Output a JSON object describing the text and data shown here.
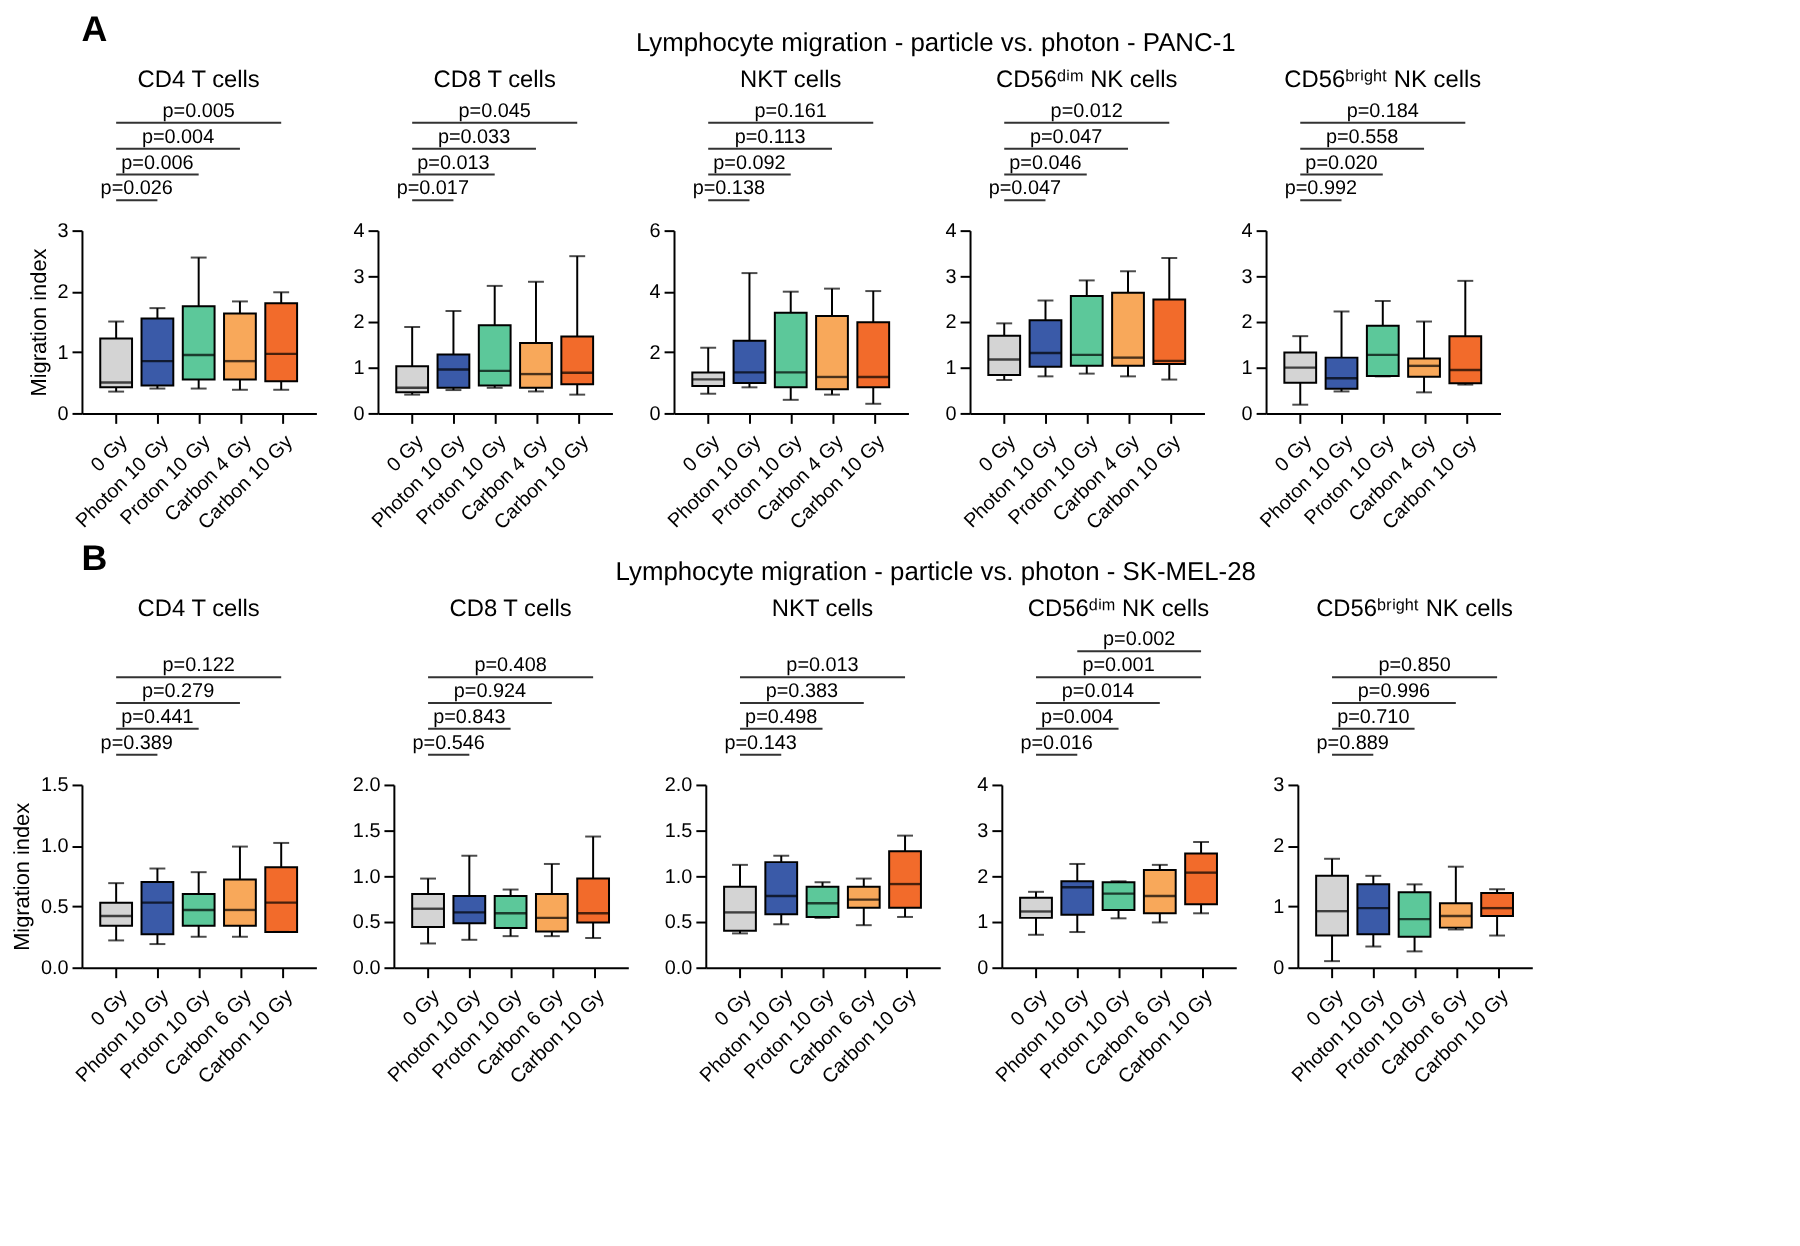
{
  "chart_data": [
    {
      "type": "other",
      "title": "Lymphocyte migration - particle vs. photon - PANC-1",
      "annotations": [
        "A"
      ]
    },
    {
      "type": "box",
      "title": "CD4 T cells",
      "ylabel": "Migration index",
      "categories": [
        "0 Gy",
        "Photon 10 Gy",
        "Proton 10 Gy",
        "Carbon 4 Gy",
        "Carbon 10 Gy"
      ],
      "colors": [
        "#d4d4d4",
        "#3a5aa8",
        "#5cc89a",
        "#f8a85a",
        "#f26b2b"
      ],
      "ylim": [
        0,
        3
      ],
      "yticks": [
        0,
        1,
        2,
        3
      ],
      "boxes": [
        {
          "low": 0.35,
          "q1": 0.42,
          "median": 0.5,
          "q3": 1.22,
          "high": 1.5
        },
        {
          "low": 0.4,
          "q1": 0.45,
          "median": 0.85,
          "q3": 1.55,
          "high": 1.72
        },
        {
          "low": 0.4,
          "q1": 0.55,
          "median": 0.95,
          "q3": 1.75,
          "high": 2.55
        },
        {
          "low": 0.38,
          "q1": 0.55,
          "median": 0.85,
          "q3": 1.63,
          "high": 1.83
        },
        {
          "low": 0.38,
          "q1": 0.52,
          "median": 0.97,
          "q3": 1.8,
          "high": 1.98
        }
      ],
      "annotations": [
        "p=0.026",
        "p=0.006",
        "p=0.004",
        "p=0.005"
      ]
    },
    {
      "type": "box",
      "title": "CD8 T cells",
      "categories": [
        "0 Gy",
        "Photon 10 Gy",
        "Proton 10 Gy",
        "Carbon 4 Gy",
        "Carbon 10 Gy"
      ],
      "colors": [
        "#d4d4d4",
        "#3a5aa8",
        "#5cc89a",
        "#f8a85a",
        "#f26b2b"
      ],
      "ylim": [
        0,
        4
      ],
      "yticks": [
        0,
        1,
        2,
        3,
        4
      ],
      "boxes": [
        {
          "low": 0.4,
          "q1": 0.45,
          "median": 0.55,
          "q3": 1.02,
          "high": 1.88
        },
        {
          "low": 0.5,
          "q1": 0.55,
          "median": 0.95,
          "q3": 1.28,
          "high": 2.23
        },
        {
          "low": 0.55,
          "q1": 0.6,
          "median": 0.92,
          "q3": 1.92,
          "high": 2.78
        },
        {
          "low": 0.47,
          "q1": 0.55,
          "median": 0.85,
          "q3": 1.53,
          "high": 2.87
        },
        {
          "low": 0.4,
          "q1": 0.63,
          "median": 0.88,
          "q3": 1.67,
          "high": 3.43
        }
      ],
      "annotations": [
        "p=0.017",
        "p=0.013",
        "p=0.033",
        "p=0.045"
      ]
    },
    {
      "type": "box",
      "title": "NKT cells",
      "categories": [
        "0 Gy",
        "Photon 10 Gy",
        "Proton 10 Gy",
        "Carbon 4 Gy",
        "Carbon 10 Gy"
      ],
      "colors": [
        "#d4d4d4",
        "#3a5aa8",
        "#5cc89a",
        "#f8a85a",
        "#f26b2b"
      ],
      "ylim": [
        0,
        6
      ],
      "yticks": [
        0,
        2,
        4,
        6
      ],
      "boxes": [
        {
          "low": 0.63,
          "q1": 0.88,
          "median": 1.1,
          "q3": 1.33,
          "high": 2.14
        },
        {
          "low": 0.84,
          "q1": 0.98,
          "median": 1.33,
          "q3": 2.37,
          "high": 4.59
        },
        {
          "low": 0.43,
          "q1": 0.84,
          "median": 1.33,
          "q3": 3.29,
          "high": 3.98
        },
        {
          "low": 0.6,
          "q1": 0.78,
          "median": 1.18,
          "q3": 3.18,
          "high": 4.08
        },
        {
          "low": 0.3,
          "q1": 0.84,
          "median": 1.18,
          "q3": 2.98,
          "high": 4.0
        }
      ],
      "annotations": [
        "p=0.138",
        "p=0.092",
        "p=0.113",
        "p=0.161"
      ]
    },
    {
      "type": "box",
      "title": "CD56ᵈⁱᵐ NK cells",
      "categories": [
        "0 Gy",
        "Photon 10 Gy",
        "Proton 10 Gy",
        "Carbon 4 Gy",
        "Carbon 10 Gy"
      ],
      "colors": [
        "#d4d4d4",
        "#3a5aa8",
        "#5cc89a",
        "#f8a85a",
        "#f26b2b"
      ],
      "ylim": [
        0,
        4
      ],
      "yticks": [
        0,
        1,
        2,
        3,
        4
      ],
      "boxes": [
        {
          "low": 0.72,
          "q1": 0.83,
          "median": 1.17,
          "q3": 1.69,
          "high": 1.96
        },
        {
          "low": 0.8,
          "q1": 1.01,
          "median": 1.31,
          "q3": 2.03,
          "high": 2.46
        },
        {
          "low": 0.86,
          "q1": 1.03,
          "median": 1.27,
          "q3": 2.56,
          "high": 2.9
        },
        {
          "low": 0.8,
          "q1": 1.03,
          "median": 1.21,
          "q3": 2.63,
          "high": 3.1
        },
        {
          "low": 0.73,
          "q1": 1.07,
          "median": 1.14,
          "q3": 2.48,
          "high": 3.39
        }
      ],
      "annotations": [
        "p=0.047",
        "p=0.046",
        "p=0.047",
        "p=0.012"
      ]
    },
    {
      "type": "box",
      "title": "CD56ᵇʳⁱᵍʰᵗ NK cells",
      "categories": [
        "0 Gy",
        "Photon 10 Gy",
        "Proton 10 Gy",
        "Carbon 4 Gy",
        "Carbon 10 Gy"
      ],
      "colors": [
        "#d4d4d4",
        "#3a5aa8",
        "#5cc89a",
        "#f8a85a",
        "#f26b2b"
      ],
      "ylim": [
        0,
        4
      ],
      "yticks": [
        0,
        1,
        2,
        3,
        4
      ],
      "boxes": [
        {
          "low": 0.18,
          "q1": 0.66,
          "median": 0.99,
          "q3": 1.32,
          "high": 1.68
        },
        {
          "low": 0.47,
          "q1": 0.53,
          "median": 0.76,
          "q3": 1.21,
          "high": 2.22
        },
        {
          "low": 0.8,
          "q1": 0.81,
          "median": 1.27,
          "q3": 1.91,
          "high": 2.45
        },
        {
          "low": 0.45,
          "q1": 0.79,
          "median": 1.03,
          "q3": 1.19,
          "high": 2.0
        },
        {
          "low": 0.62,
          "q1": 0.65,
          "median": 0.94,
          "q3": 1.68,
          "high": 2.89
        }
      ],
      "annotations": [
        "p=0.992",
        "p=0.020",
        "p=0.558",
        "p=0.184"
      ]
    },
    {
      "type": "other",
      "title": "Lymphocyte migration - particle vs. photon - SK-MEL-28",
      "annotations": [
        "B"
      ]
    },
    {
      "type": "box",
      "title": "CD4 T cells",
      "ylabel": "Migration index",
      "categories": [
        "0 Gy",
        "Photon 10 Gy",
        "Proton 10 Gy",
        "Carbon 6 Gy",
        "Carbon 10 Gy"
      ],
      "colors": [
        "#d4d4d4",
        "#3a5aa8",
        "#5cc89a",
        "#f8a85a",
        "#f26b2b"
      ],
      "ylim": [
        0,
        1.5
      ],
      "yticks": [
        {
          "value": 0,
          "label": "0.0"
        },
        0.5,
        {
          "value": 1,
          "label": "1.0"
        },
        1.5
      ],
      "boxes": [
        {
          "low": 0.22,
          "q1": 0.34,
          "median": 0.42,
          "q3": 0.53,
          "high": 0.69
        },
        {
          "low": 0.19,
          "q1": 0.27,
          "median": 0.53,
          "q3": 0.7,
          "high": 0.81
        },
        {
          "low": 0.25,
          "q1": 0.34,
          "median": 0.47,
          "q3": 0.6,
          "high": 0.78
        },
        {
          "low": 0.25,
          "q1": 0.34,
          "median": 0.47,
          "q3": 0.72,
          "high": 0.99
        },
        {
          "low": 0.29,
          "q1": 0.29,
          "median": 0.53,
          "q3": 0.82,
          "high": 1.02
        }
      ],
      "annotations": [
        "p=0.389",
        "p=0.441",
        "p=0.279",
        "p=0.122"
      ]
    },
    {
      "type": "box",
      "title": "CD8 T cells",
      "categories": [
        "0 Gy",
        "Photon 10 Gy",
        "Proton 10 Gy",
        "Carbon 6 Gy",
        "Carbon 10 Gy"
      ],
      "colors": [
        "#d4d4d4",
        "#3a5aa8",
        "#5cc89a",
        "#f8a85a",
        "#f26b2b"
      ],
      "ylim": [
        0,
        2
      ],
      "yticks": [
        {
          "value": 0,
          "label": "0.0"
        },
        0.5,
        {
          "value": 1,
          "label": "1.0"
        },
        1.5,
        {
          "value": 2,
          "label": "2.0"
        }
      ],
      "boxes": [
        {
          "low": 0.26,
          "q1": 0.44,
          "median": 0.64,
          "q3": 0.8,
          "high": 0.97
        },
        {
          "low": 0.3,
          "q1": 0.48,
          "median": 0.6,
          "q3": 0.78,
          "high": 1.22
        },
        {
          "low": 0.34,
          "q1": 0.43,
          "median": 0.59,
          "q3": 0.78,
          "high": 0.85
        },
        {
          "low": 0.34,
          "q1": 0.39,
          "median": 0.54,
          "q3": 0.8,
          "high": 1.13
        },
        {
          "low": 0.32,
          "q1": 0.49,
          "median": 0.59,
          "q3": 0.97,
          "high": 1.43
        }
      ],
      "annotations": [
        "p=0.546",
        "p=0.843",
        "p=0.924",
        "p=0.408"
      ]
    },
    {
      "type": "box",
      "title": "NKT cells",
      "categories": [
        "0 Gy",
        "Photon 10 Gy",
        "Proton 10 Gy",
        "Carbon 6 Gy",
        "Carbon 10 Gy"
      ],
      "colors": [
        "#d4d4d4",
        "#3a5aa8",
        "#5cc89a",
        "#f8a85a",
        "#f26b2b"
      ],
      "ylim": [
        0,
        2
      ],
      "yticks": [
        {
          "value": 0,
          "label": "0.0"
        },
        0.5,
        {
          "value": 1,
          "label": "1.0"
        },
        1.5,
        {
          "value": 2,
          "label": "2.0"
        }
      ],
      "boxes": [
        {
          "low": 0.37,
          "q1": 0.4,
          "median": 0.6,
          "q3": 0.88,
          "high": 1.12
        },
        {
          "low": 0.47,
          "q1": 0.58,
          "median": 0.78,
          "q3": 1.15,
          "high": 1.22
        },
        {
          "low": 0.54,
          "q1": 0.55,
          "median": 0.7,
          "q3": 0.88,
          "high": 0.93
        },
        {
          "low": 0.46,
          "q1": 0.65,
          "median": 0.74,
          "q3": 0.88,
          "high": 0.97
        },
        {
          "low": 0.55,
          "q1": 0.65,
          "median": 0.91,
          "q3": 1.27,
          "high": 1.44
        }
      ],
      "annotations": [
        "p=0.143",
        "p=0.498",
        "p=0.383",
        "p=0.013"
      ]
    },
    {
      "type": "box",
      "title": "CD56ᵈⁱᵐ NK cells",
      "categories": [
        "0 Gy",
        "Photon 10 Gy",
        "Proton 10 Gy",
        "Carbon 6 Gy",
        "Carbon 10 Gy"
      ],
      "colors": [
        "#d4d4d4",
        "#3a5aa8",
        "#5cc89a",
        "#f8a85a",
        "#f26b2b"
      ],
      "ylim": [
        0,
        4
      ],
      "yticks": [
        0,
        1,
        2,
        3,
        4
      ],
      "boxes": [
        {
          "low": 0.71,
          "q1": 1.08,
          "median": 1.22,
          "q3": 1.52,
          "high": 1.65
        },
        {
          "low": 0.77,
          "q1": 1.15,
          "median": 1.75,
          "q3": 1.88,
          "high": 2.26
        },
        {
          "low": 1.07,
          "q1": 1.25,
          "median": 1.61,
          "q3": 1.86,
          "high": 1.88
        },
        {
          "low": 0.98,
          "q1": 1.18,
          "median": 1.56,
          "q3": 2.13,
          "high": 2.24
        },
        {
          "low": 1.18,
          "q1": 1.38,
          "median": 2.07,
          "q3": 2.49,
          "high": 2.74
        }
      ],
      "annotations": [
        "p=0.016",
        "p=0.004",
        "p=0.014",
        "p=0.001",
        "p=0.002"
      ]
    },
    {
      "type": "box",
      "title": "CD56ᵇʳⁱᵍʰᵗ NK cells",
      "categories": [
        "0 Gy",
        "Photon 10 Gy",
        "Proton 10 Gy",
        "Carbon 6 Gy",
        "Carbon 10 Gy"
      ],
      "colors": [
        "#d4d4d4",
        "#3a5aa8",
        "#5cc89a",
        "#f8a85a",
        "#f26b2b"
      ],
      "ylim": [
        0,
        3
      ],
      "yticks": [
        0,
        1,
        2,
        3
      ],
      "boxes": [
        {
          "low": 0.1,
          "q1": 0.52,
          "median": 0.92,
          "q3": 1.5,
          "high": 1.78
        },
        {
          "low": 0.34,
          "q1": 0.54,
          "median": 0.97,
          "q3": 1.36,
          "high": 1.5
        },
        {
          "low": 0.26,
          "q1": 0.5,
          "median": 0.79,
          "q3": 1.23,
          "high": 1.36
        },
        {
          "low": 0.62,
          "q1": 0.65,
          "median": 0.84,
          "q3": 1.05,
          "high": 1.65
        },
        {
          "low": 0.52,
          "q1": 0.84,
          "median": 0.97,
          "q3": 1.22,
          "high": 1.28
        }
      ],
      "annotations": [
        "p=0.889",
        "p=0.710",
        "p=0.996",
        "p=0.850"
      ]
    }
  ]
}
